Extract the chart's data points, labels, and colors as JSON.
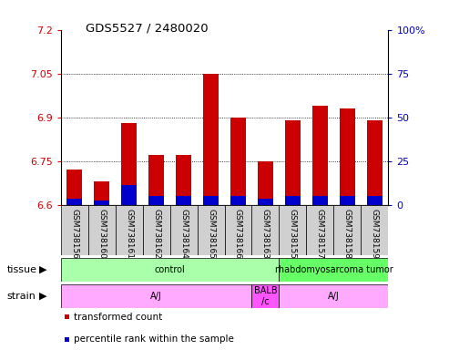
{
  "title": "GDS5527 / 2480020",
  "samples": [
    "GSM738156",
    "GSM738160",
    "GSM738161",
    "GSM738162",
    "GSM738164",
    "GSM738165",
    "GSM738166",
    "GSM738163",
    "GSM738155",
    "GSM738157",
    "GSM738158",
    "GSM738159"
  ],
  "red_values": [
    6.72,
    6.68,
    6.88,
    6.77,
    6.77,
    7.05,
    6.9,
    6.75,
    6.89,
    6.94,
    6.93,
    6.89
  ],
  "blue_values": [
    6.622,
    6.613,
    6.667,
    6.63,
    6.63,
    6.63,
    6.63,
    6.622,
    6.63,
    6.63,
    6.63,
    6.63
  ],
  "baseline": 6.6,
  "ylim_left": [
    6.6,
    7.2
  ],
  "ylim_right": [
    0,
    100
  ],
  "yticks_left": [
    6.6,
    6.75,
    6.9,
    7.05,
    7.2
  ],
  "yticks_right": [
    0,
    25,
    50,
    75,
    100
  ],
  "ytick_labels_left": [
    "6.6",
    "6.75",
    "6.9",
    "7.05",
    "7.2"
  ],
  "ytick_labels_right": [
    "0",
    "25",
    "50",
    "75",
    "100%"
  ],
  "grid_lines": [
    6.75,
    6.9,
    7.05
  ],
  "bar_width": 0.55,
  "red_color": "#CC0000",
  "blue_color": "#0000CC",
  "left_axis_color": "#CC0000",
  "right_axis_color": "#0000CC",
  "tissue_groups": [
    {
      "label": "control",
      "start": 0,
      "end": 7,
      "color": "#aaffaa"
    },
    {
      "label": "rhabdomyosarcoma tumor",
      "start": 8,
      "end": 11,
      "color": "#66ff66"
    }
  ],
  "strain_groups": [
    {
      "label": "A/J",
      "start": 0,
      "end": 6,
      "color": "#ffaaff"
    },
    {
      "label": "BALB\n/c",
      "start": 7,
      "end": 7,
      "color": "#ff55ff"
    },
    {
      "label": "A/J",
      "start": 8,
      "end": 11,
      "color": "#ffaaff"
    }
  ]
}
